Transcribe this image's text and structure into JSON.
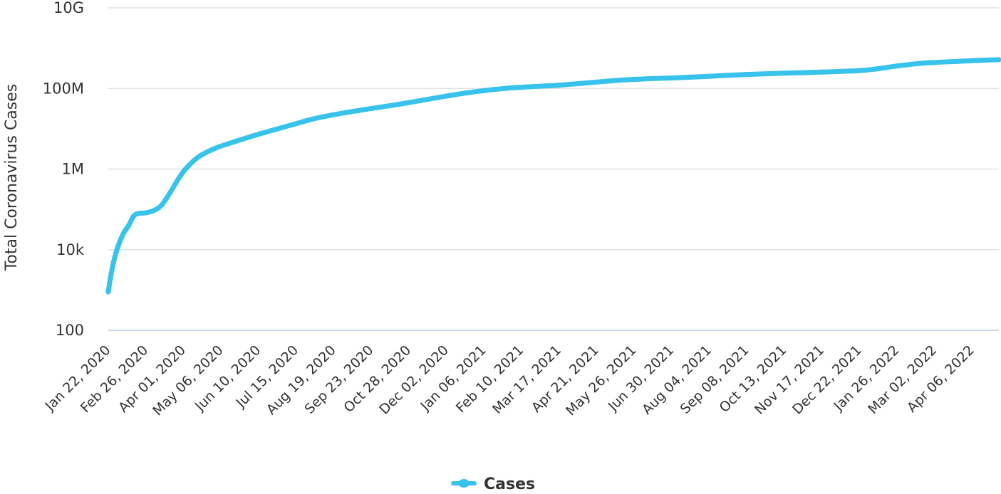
{
  "chart_data": {
    "type": "line",
    "ylabel": "Total Coronavirus Cases",
    "xlabel": "",
    "yscale": "log",
    "ylim": [
      100,
      10000000000
    ],
    "yticks": [
      {
        "value": 100,
        "label": "100"
      },
      {
        "value": 10000,
        "label": "10k"
      },
      {
        "value": 1000000,
        "label": "1M"
      },
      {
        "value": 100000000,
        "label": "100M"
      },
      {
        "value": 10000000000,
        "label": "10G"
      }
    ],
    "xlim": [
      "2020-01-22",
      "2022-05-01"
    ],
    "xticks": [
      {
        "date": "2020-01-22",
        "label": "Jan 22, 2020"
      },
      {
        "date": "2020-02-26",
        "label": "Feb 26, 2020"
      },
      {
        "date": "2020-04-01",
        "label": "Apr 01, 2020"
      },
      {
        "date": "2020-05-06",
        "label": "May 06, 2020"
      },
      {
        "date": "2020-06-10",
        "label": "Jun 10, 2020"
      },
      {
        "date": "2020-07-15",
        "label": "Jul 15, 2020"
      },
      {
        "date": "2020-08-19",
        "label": "Aug 19, 2020"
      },
      {
        "date": "2020-09-23",
        "label": "Sep 23, 2020"
      },
      {
        "date": "2020-10-28",
        "label": "Oct 28, 2020"
      },
      {
        "date": "2020-12-02",
        "label": "Dec 02, 2020"
      },
      {
        "date": "2021-01-06",
        "label": "Jan 06, 2021"
      },
      {
        "date": "2021-02-10",
        "label": "Feb 10, 2021"
      },
      {
        "date": "2021-03-17",
        "label": "Mar 17, 2021"
      },
      {
        "date": "2021-04-21",
        "label": "Apr 21, 2021"
      },
      {
        "date": "2021-05-26",
        "label": "May 26, 2021"
      },
      {
        "date": "2021-06-30",
        "label": "Jun 30, 2021"
      },
      {
        "date": "2021-08-04",
        "label": "Aug 04, 2021"
      },
      {
        "date": "2021-09-08",
        "label": "Sep 08, 2021"
      },
      {
        "date": "2021-10-13",
        "label": "Oct 13, 2021"
      },
      {
        "date": "2021-11-17",
        "label": "Nov 17, 2021"
      },
      {
        "date": "2021-12-22",
        "label": "Dec 22, 2021"
      },
      {
        "date": "2022-01-26",
        "label": "Jan 26, 2022"
      },
      {
        "date": "2022-03-02",
        "label": "Mar 02, 2022"
      },
      {
        "date": "2022-04-06",
        "label": "Apr 06, 2022"
      }
    ],
    "grid": true,
    "legend_position": "bottom-center",
    "series": [
      {
        "name": "Cases",
        "color": "#37c3eb",
        "points": [
          {
            "x": "2020-01-22",
            "y": 900
          },
          {
            "x": "2020-01-24",
            "y": 2000
          },
          {
            "x": "2020-01-27",
            "y": 5000
          },
          {
            "x": "2020-01-31",
            "y": 12000
          },
          {
            "x": "2020-02-05",
            "y": 25000
          },
          {
            "x": "2020-02-10",
            "y": 40000
          },
          {
            "x": "2020-02-15",
            "y": 70000
          },
          {
            "x": "2020-02-20",
            "y": 80000
          },
          {
            "x": "2020-02-26",
            "y": 82000
          },
          {
            "x": "2020-03-05",
            "y": 95000
          },
          {
            "x": "2020-03-12",
            "y": 130000
          },
          {
            "x": "2020-03-20",
            "y": 270000
          },
          {
            "x": "2020-03-27",
            "y": 550000
          },
          {
            "x": "2020-04-03",
            "y": 1000000
          },
          {
            "x": "2020-04-15",
            "y": 2000000
          },
          {
            "x": "2020-05-01",
            "y": 3300000
          },
          {
            "x": "2020-05-20",
            "y": 4900000
          },
          {
            "x": "2020-06-10",
            "y": 7300000
          },
          {
            "x": "2020-07-01",
            "y": 10500000
          },
          {
            "x": "2020-07-15",
            "y": 13400000
          },
          {
            "x": "2020-08-01",
            "y": 17800000
          },
          {
            "x": "2020-08-19",
            "y": 22300000
          },
          {
            "x": "2020-09-10",
            "y": 28000000
          },
          {
            "x": "2020-09-23",
            "y": 31800000
          },
          {
            "x": "2020-10-15",
            "y": 39000000
          },
          {
            "x": "2020-10-28",
            "y": 44500000
          },
          {
            "x": "2020-11-15",
            "y": 54000000
          },
          {
            "x": "2020-12-02",
            "y": 64500000
          },
          {
            "x": "2020-12-20",
            "y": 77000000
          },
          {
            "x": "2021-01-06",
            "y": 88000000
          },
          {
            "x": "2021-01-25",
            "y": 100000000
          },
          {
            "x": "2021-02-10",
            "y": 107000000
          },
          {
            "x": "2021-03-01",
            "y": 114000000
          },
          {
            "x": "2021-03-17",
            "y": 121000000
          },
          {
            "x": "2021-04-05",
            "y": 132000000
          },
          {
            "x": "2021-04-21",
            "y": 144000000
          },
          {
            "x": "2021-05-10",
            "y": 158000000
          },
          {
            "x": "2021-05-26",
            "y": 168000000
          },
          {
            "x": "2021-06-15",
            "y": 177000000
          },
          {
            "x": "2021-06-30",
            "y": 182000000
          },
          {
            "x": "2021-07-20",
            "y": 192000000
          },
          {
            "x": "2021-08-04",
            "y": 200000000
          },
          {
            "x": "2021-08-20",
            "y": 211000000
          },
          {
            "x": "2021-09-08",
            "y": 222000000
          },
          {
            "x": "2021-09-25",
            "y": 231000000
          },
          {
            "x": "2021-10-13",
            "y": 239000000
          },
          {
            "x": "2021-11-01",
            "y": 247000000
          },
          {
            "x": "2021-11-17",
            "y": 255000000
          },
          {
            "x": "2021-12-05",
            "y": 265000000
          },
          {
            "x": "2021-12-22",
            "y": 277000000
          },
          {
            "x": "2022-01-05",
            "y": 300000000
          },
          {
            "x": "2022-01-26",
            "y": 360000000
          },
          {
            "x": "2022-02-15",
            "y": 415000000
          },
          {
            "x": "2022-03-02",
            "y": 440000000
          },
          {
            "x": "2022-03-20",
            "y": 465000000
          },
          {
            "x": "2022-04-06",
            "y": 490000000
          },
          {
            "x": "2022-04-20",
            "y": 505000000
          },
          {
            "x": "2022-05-01",
            "y": 515000000
          }
        ]
      }
    ]
  }
}
